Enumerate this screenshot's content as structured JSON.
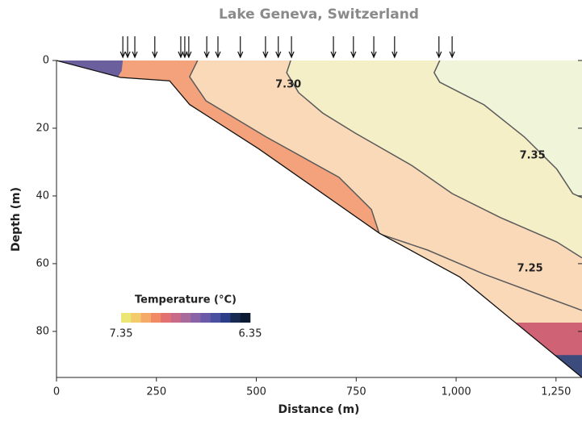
{
  "chart_data": {
    "type": "contour",
    "title": "Lake Geneva, Switzerland",
    "x_label": "Distance (m)",
    "y_label": "Depth (m)",
    "xlim": [
      0,
      1315
    ],
    "ylim": [
      0,
      93.6
    ],
    "y_inverted": true,
    "xticks": [
      0,
      250,
      500,
      750,
      {
        "value": 1000,
        "label": "1,000"
      },
      {
        "value": 1250,
        "label": "1,250"
      }
    ],
    "yticks": [
      0,
      20,
      40,
      60,
      80
    ],
    "water_color": "#fad9b9",
    "bathymetry": {
      "x": [
        0,
        160,
        283,
        333,
        505,
        808,
        1010,
        1315
      ],
      "depth": [
        0,
        5,
        6,
        13,
        26,
        51,
        64,
        93.6
      ]
    },
    "sensor_x": [
      166,
      178,
      196,
      246,
      311,
      321,
      331,
      376,
      404,
      460,
      523,
      555,
      588,
      693,
      743,
      794,
      846,
      957,
      990
    ],
    "zones": [
      {
        "level": 7.3,
        "color": "#f5efc8",
        "closure": "upper-right",
        "stroke": true,
        "x": [
          586,
          576,
          606,
          666,
          747,
          889,
          990,
          1111,
          1252,
          1315
        ],
        "depth": [
          0,
          3.6,
          9.5,
          15.5,
          21.4,
          31,
          39.3,
          46.4,
          53.6,
          58.3
        ]
      },
      {
        "level": 7.35,
        "color": "#f0f4d8",
        "closure": "upper-right",
        "stroke": true,
        "x": [
          959,
          945,
          959,
          1070,
          1171,
          1252,
          1292,
          1315
        ],
        "depth": [
          0,
          3.6,
          6.4,
          13.1,
          22.6,
          32.1,
          39.3,
          40.5
        ]
      },
      {
        "level": 7.25,
        "stroke": true,
        "x": [
          808,
          929,
          1070,
          1232,
          1315
        ],
        "depth": [
          51.2,
          56,
          63.1,
          70.2,
          73.8
        ]
      },
      {
        "level": 7.2,
        "color": "#f3a27c",
        "closure": "left",
        "stroke": true,
        "x": [
          353,
          333,
          374,
          525,
          707,
          788,
          808
        ],
        "depth": [
          0,
          4.8,
          11.9,
          22.6,
          34.5,
          44,
          51.2
        ]
      },
      {
        "level": 6.6,
        "color": "#6c5f9e",
        "closure": "left",
        "stroke": false,
        "x": [
          166,
          163,
          150,
          100
        ],
        "depth": [
          0,
          3.1,
          5.5,
          5
        ]
      },
      {
        "level": 7.1,
        "color": "#cf6274",
        "closure": "lower-right",
        "stroke": false,
        "x": [
          1131,
          1315
        ],
        "depth": [
          77.4,
          77.4
        ]
      },
      {
        "level": 6.8,
        "color": "#3b4b7c",
        "closure": "lower-right",
        "stroke": false,
        "x": [
          1200,
          1315
        ],
        "depth": [
          87,
          87
        ]
      }
    ],
    "annotations": [
      {
        "text": "7.30",
        "x": 580,
        "y": 7.1
      },
      {
        "text": "7.35",
        "x": 1191,
        "y": 28.1
      },
      {
        "text": "7.25",
        "x": 1185,
        "y": 61.4
      }
    ],
    "colorbar": {
      "title": "Temperature (°C)",
      "ticks": [
        7.35,
        6.35
      ],
      "colors": [
        "#ece676",
        "#f3cb6a",
        "#f5aa6a",
        "#f08b66",
        "#e27172",
        "#c86a88",
        "#a8699b",
        "#8a63a7",
        "#6a5aa8",
        "#4a4f9f",
        "#2c3e88",
        "#182a52",
        "#0b1a30"
      ]
    }
  }
}
